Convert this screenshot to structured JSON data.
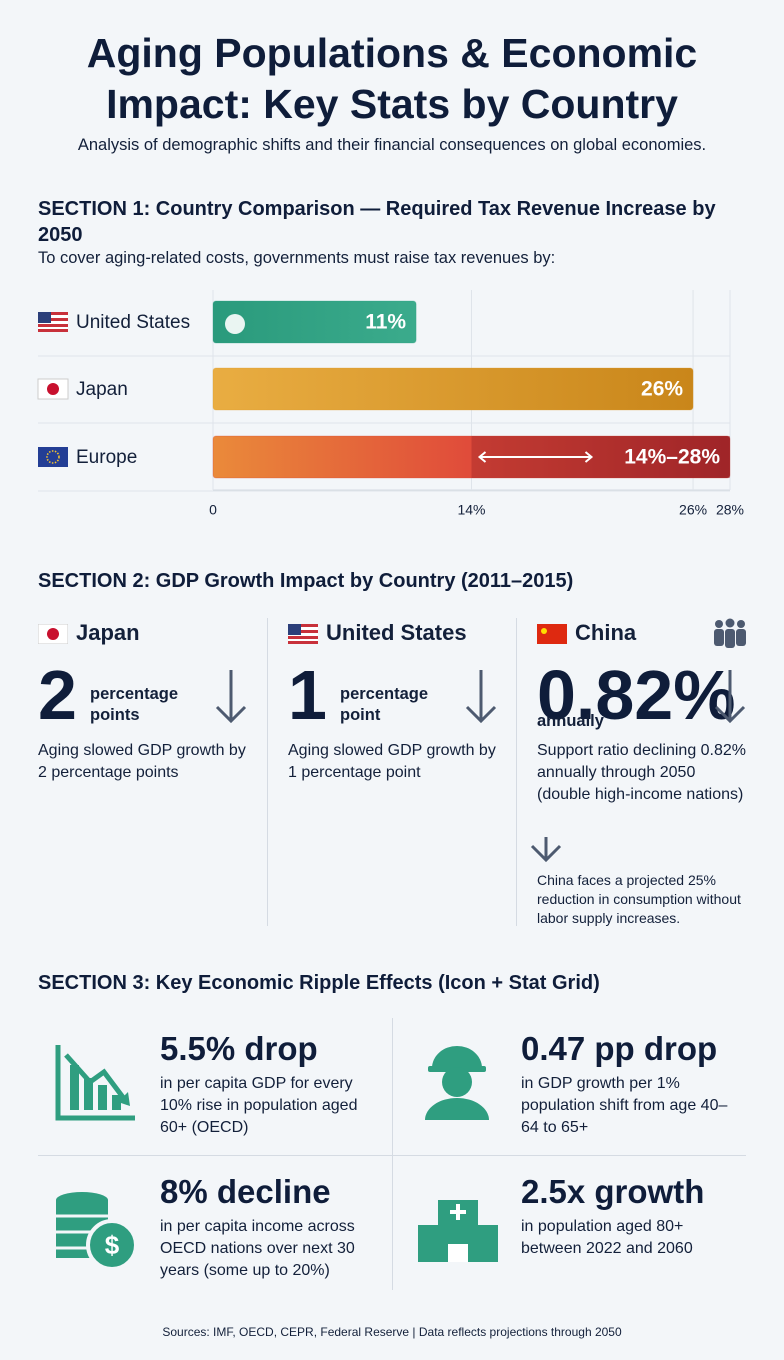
{
  "header": {
    "title": "Aging Populations & Economic Impact: Key Stats by Country",
    "subtitle": "Analysis of demographic shifts and their financial consequences on global economies."
  },
  "section1": {
    "title": "SECTION 1: Country Comparison — Required Tax Revenue Increase by 2050",
    "subtitle": "To cover aging-related costs, governments must raise tax revenues by:",
    "xlim": [
      0,
      28
    ],
    "xticks": [
      0,
      {
        "value": 14,
        "label": "14%"
      },
      {
        "value": 26,
        "label": "26%"
      },
      {
        "value": 28,
        "label": "28%"
      }
    ],
    "bars": [
      {
        "label": "United States",
        "value": 11,
        "value_label": "11%",
        "color": "#2f9e80"
      },
      {
        "label": "Japan",
        "value": 26,
        "value_label": "26%",
        "color": "#dd9a2c"
      },
      {
        "label": "Europe",
        "low": 14,
        "high": 28,
        "value_label": "14%–28%",
        "color": "#d6453a"
      }
    ]
  },
  "section2": {
    "title": "SECTION 2: GDP Growth Impact by Country (2011–2015)",
    "columns": [
      {
        "country": "Japan",
        "stat": "2",
        "unit": "percentage points",
        "text": "Aging slowed GDP growth by 2 percentage points"
      },
      {
        "country": "United States",
        "stat": "1",
        "unit": "percentage point",
        "text": "Aging slowed GDP growth by 1 percentage point"
      },
      {
        "country": "China",
        "stat": "0.82%",
        "unit": "annually",
        "text": "Support ratio declining 0.82% annually through 2050 (double high-income nations)",
        "note": "China faces a projected 25% reduction in consumption without labor supply increases."
      }
    ]
  },
  "section3": {
    "title": "SECTION 3: Key Economic Ripple Effects (Icon + Stat Grid)",
    "items": [
      {
        "stat": "5.5% drop",
        "text": "in per capita GDP for every 10% rise in population aged 60+ (OECD)"
      },
      {
        "stat": "0.47 pp drop",
        "text": "in GDP growth per 1% population shift from age 40–64 to 65+"
      },
      {
        "stat": "8% decline",
        "text": "in per capita income across OECD nations over next 30 years (some up to 20%)"
      },
      {
        "stat": "2.5x growth",
        "text": "in population aged 80+ between 2022 and 2060"
      }
    ]
  },
  "footer": "Sources: IMF, OECD, CEPR, Federal Reserve | Data reflects projections through 2050"
}
